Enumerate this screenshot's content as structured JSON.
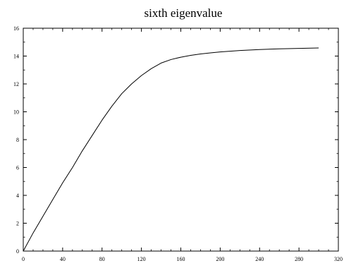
{
  "chart_data": {
    "type": "line",
    "title": "sixth eigenvalue",
    "xlabel": "",
    "ylabel": "",
    "xlim": [
      0,
      320
    ],
    "ylim": [
      0,
      16
    ],
    "x_ticks": [
      "0",
      "40",
      "80",
      "120",
      "160",
      "200",
      "240",
      "280",
      "320"
    ],
    "y_ticks": [
      "0",
      "2",
      "4",
      "6",
      "8",
      "10",
      "12",
      "14",
      "16"
    ],
    "grid": false,
    "series": [
      {
        "color": "#000000",
        "x": [
          0,
          10,
          20,
          30,
          40,
          50,
          60,
          70,
          80,
          90,
          100,
          110,
          120,
          130,
          140,
          150,
          160,
          170,
          180,
          190,
          200,
          220,
          240,
          260,
          280,
          300
        ],
        "y": [
          0,
          1.3,
          2.5,
          3.7,
          4.9,
          6.0,
          7.2,
          8.3,
          9.4,
          10.4,
          11.3,
          12.0,
          12.6,
          13.1,
          13.5,
          13.75,
          13.92,
          14.05,
          14.15,
          14.23,
          14.3,
          14.4,
          14.47,
          14.52,
          14.55,
          14.58
        ]
      }
    ]
  }
}
